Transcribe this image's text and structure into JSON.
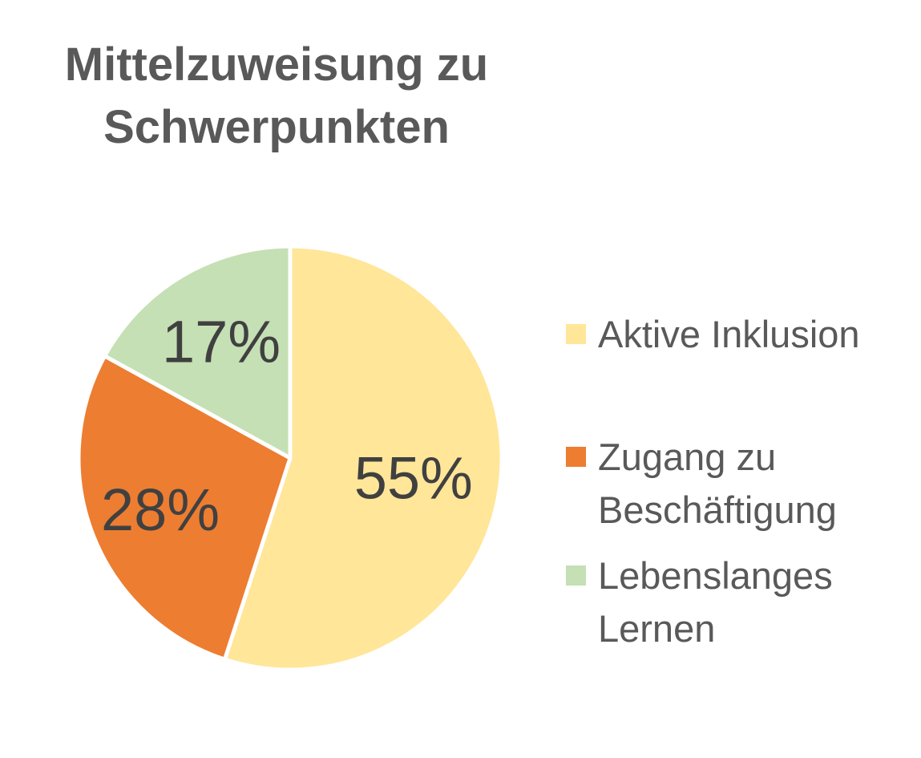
{
  "colors": {
    "title": "#595959",
    "text": "#595959",
    "data_label": "#404040",
    "background": "#ffffff",
    "slice_border": "#ffffff"
  },
  "chart_data": {
    "type": "pie",
    "title_lines": [
      "Mittelzuweisung zu",
      "Schwerpunkten"
    ],
    "legend_position": "right",
    "start_angle_deg": 0,
    "direction": "clockwise",
    "slices": [
      {
        "label_lines": [
          "Aktive Inklusion"
        ],
        "value": 55,
        "value_label": "55%",
        "color": "#FFE699"
      },
      {
        "label_lines": [
          "Zugang zu",
          "Beschäftigung"
        ],
        "value": 28,
        "value_label": "28%",
        "color": "#ED7D31"
      },
      {
        "label_lines": [
          "Lebenslanges",
          "Lernen"
        ],
        "value": 17,
        "value_label": "17%",
        "color": "#C5E0B4"
      }
    ]
  }
}
